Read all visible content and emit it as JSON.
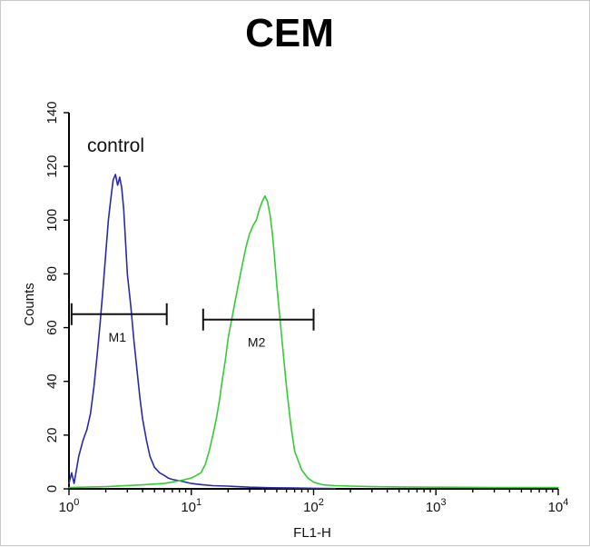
{
  "chart_data": {
    "type": "line",
    "title": "CEM",
    "xlabel": "FL1-H",
    "ylabel": "Counts",
    "xscale": "log",
    "xlim": [
      1,
      10000
    ],
    "ylim": [
      0,
      140
    ],
    "grid": false,
    "annotation": "control",
    "x_ticks": [
      {
        "base": "10",
        "exp": "0",
        "value": 1
      },
      {
        "base": "10",
        "exp": "1",
        "value": 10
      },
      {
        "base": "10",
        "exp": "2",
        "value": 100
      },
      {
        "base": "10",
        "exp": "3",
        "value": 1000
      },
      {
        "base": "10",
        "exp": "4",
        "value": 10000
      }
    ],
    "y_ticks": [
      0,
      20,
      40,
      60,
      80,
      100,
      120,
      140
    ],
    "markers": [
      {
        "label": "M1",
        "x_start": 1.05,
        "x_end": 6.3,
        "y": 65
      },
      {
        "label": "M2",
        "x_start": 12.5,
        "x_end": 100,
        "y": 63
      }
    ],
    "series": [
      {
        "color": "#2a2aa8",
        "x": [
          1.0,
          1.05,
          1.1,
          1.2,
          1.3,
          1.4,
          1.5,
          1.6,
          1.7,
          1.8,
          1.9,
          2.0,
          2.1,
          2.2,
          2.3,
          2.4,
          2.5,
          2.6,
          2.7,
          2.8,
          2.9,
          3.0,
          3.2,
          3.4,
          3.6,
          3.8,
          4.0,
          4.3,
          4.6,
          5.0,
          5.5,
          6.0,
          6.5,
          7.0,
          8.0,
          9.0,
          10,
          12,
          15,
          20,
          30,
          45,
          70,
          100,
          150
        ],
        "y": [
          2,
          6,
          2,
          12,
          18,
          22,
          28,
          38,
          50,
          62,
          75,
          88,
          100,
          108,
          115,
          117,
          113,
          116,
          112,
          104,
          92,
          80,
          68,
          55,
          44,
          34,
          26,
          18,
          12,
          8,
          6,
          5,
          4,
          3.5,
          3,
          2.5,
          2,
          1.6,
          1.2,
          1,
          0.6,
          0.4,
          0.3,
          0.2,
          0.1
        ]
      },
      {
        "color": "#33cc33",
        "x": [
          1.0,
          2,
          4,
          6,
          8,
          10,
          11,
          12,
          13,
          14,
          15,
          16,
          17,
          18,
          19,
          20,
          22,
          24,
          26,
          28,
          30,
          32,
          34,
          36,
          38,
          40,
          42,
          44,
          46,
          48,
          50,
          55,
          60,
          65,
          70,
          80,
          90,
          100,
          120,
          150,
          200,
          300,
          500,
          1000,
          3000,
          10000
        ],
        "y": [
          0.5,
          0.8,
          1.5,
          2,
          3,
          4,
          5,
          6,
          9,
          14,
          20,
          26,
          33,
          41,
          48,
          56,
          66,
          75,
          83,
          90,
          95,
          98,
          100,
          104,
          107,
          109,
          107,
          102,
          95,
          86,
          76,
          56,
          38,
          24,
          14,
          7,
          4,
          2.5,
          1.5,
          1.2,
          1,
          0.8,
          0.7,
          0.6,
          0.5,
          0.5
        ]
      }
    ]
  }
}
